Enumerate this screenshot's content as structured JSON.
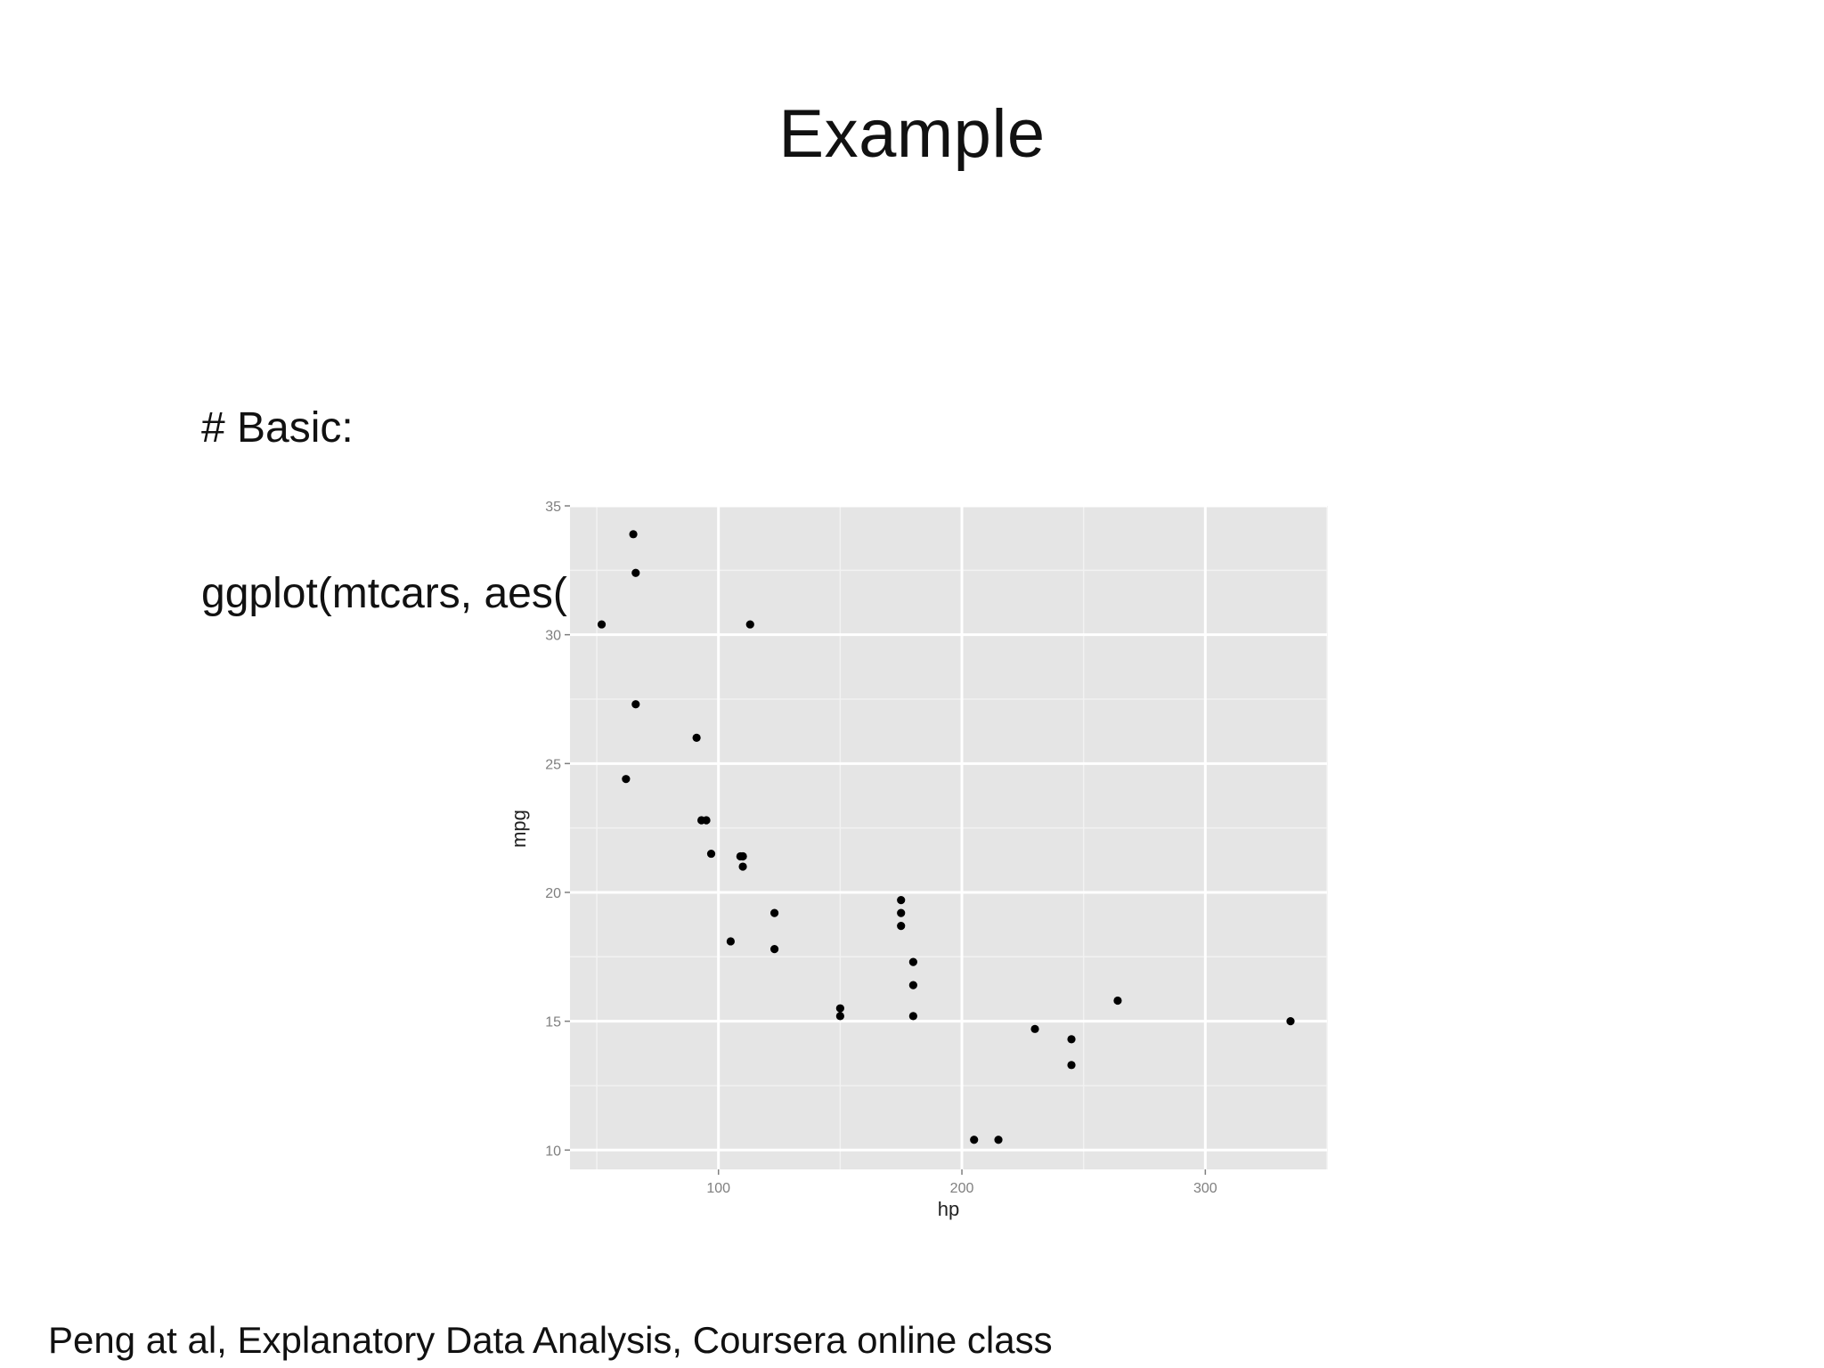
{
  "slide": {
    "title": "Example",
    "code_lines": [
      "# Basic:",
      "ggplot(mtcars, aes(hp, mpg)) + geom_point()"
    ],
    "footer": "Peng at al, Explanatory Data Analysis, Coursera online class"
  },
  "chart_data": {
    "type": "scatter",
    "xlabel": "hp",
    "ylabel": "mpg",
    "xlim": [
      39,
      350
    ],
    "ylim": [
      9.25,
      35
    ],
    "x_ticks": [
      100,
      200,
      300
    ],
    "y_ticks": [
      10,
      15,
      20,
      25,
      30,
      35
    ],
    "grid": true,
    "panel_color": "#e5e5e5",
    "point_color": "#000000",
    "points": [
      {
        "x": 110,
        "y": 21.0
      },
      {
        "x": 110,
        "y": 21.4
      },
      {
        "x": 93,
        "y": 22.8
      },
      {
        "x": 110,
        "y": 21.4
      },
      {
        "x": 175,
        "y": 18.7
      },
      {
        "x": 105,
        "y": 18.1
      },
      {
        "x": 245,
        "y": 14.3
      },
      {
        "x": 62,
        "y": 24.4
      },
      {
        "x": 95,
        "y": 22.8
      },
      {
        "x": 123,
        "y": 19.2
      },
      {
        "x": 123,
        "y": 17.8
      },
      {
        "x": 180,
        "y": 16.4
      },
      {
        "x": 180,
        "y": 17.3
      },
      {
        "x": 180,
        "y": 15.2
      },
      {
        "x": 205,
        "y": 10.4
      },
      {
        "x": 215,
        "y": 10.4
      },
      {
        "x": 230,
        "y": 14.7
      },
      {
        "x": 66,
        "y": 32.4
      },
      {
        "x": 52,
        "y": 30.4
      },
      {
        "x": 65,
        "y": 33.9
      },
      {
        "x": 97,
        "y": 21.5
      },
      {
        "x": 150,
        "y": 15.5
      },
      {
        "x": 150,
        "y": 15.2
      },
      {
        "x": 245,
        "y": 13.3
      },
      {
        "x": 175,
        "y": 19.2
      },
      {
        "x": 66,
        "y": 27.3
      },
      {
        "x": 91,
        "y": 26.0
      },
      {
        "x": 113,
        "y": 30.4
      },
      {
        "x": 264,
        "y": 15.8
      },
      {
        "x": 175,
        "y": 19.7
      },
      {
        "x": 335,
        "y": 15.0
      },
      {
        "x": 109,
        "y": 21.4
      }
    ]
  }
}
